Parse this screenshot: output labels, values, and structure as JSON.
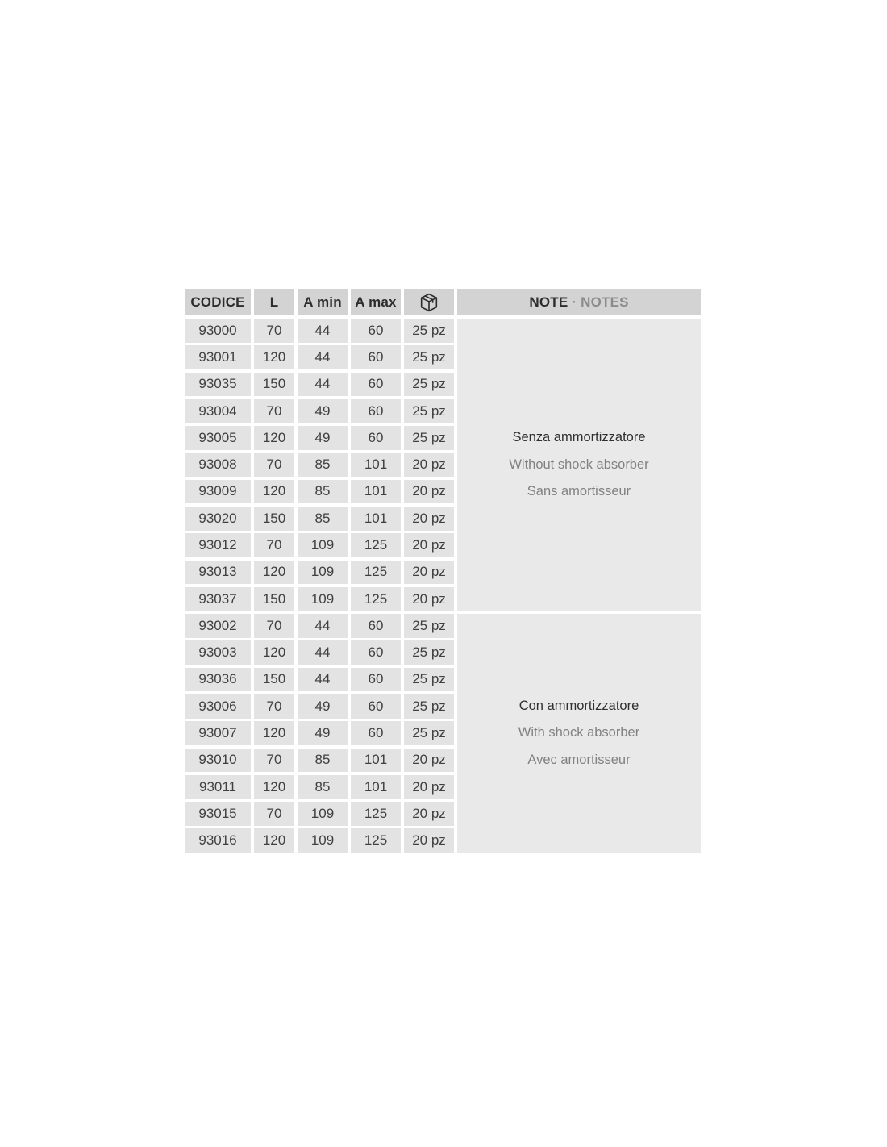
{
  "colors": {
    "header_bg": "#d3d3d3",
    "cell_bg": "#e3e3e3",
    "note_panel_bg": "#e9e9e9",
    "text_dark": "#2d2d2d",
    "text_number": "#404040",
    "text_gray": "#818181",
    "page_bg": "#ffffff"
  },
  "table": {
    "columns": [
      "CODICE",
      "L",
      "A min",
      "A max"
    ],
    "package_column_icon": "package-icon",
    "note_header": {
      "primary": "NOTE",
      "separator": "·",
      "secondary": "NOTES"
    },
    "groups": [
      {
        "note": {
          "it": "Senza ammortizzatore",
          "en": "Without shock absorber",
          "fr": "Sans amortisseur"
        },
        "rows": [
          [
            "93000",
            "70",
            "44",
            "60",
            "25 pz"
          ],
          [
            "93001",
            "120",
            "44",
            "60",
            "25 pz"
          ],
          [
            "93035",
            "150",
            "44",
            "60",
            "25 pz"
          ],
          [
            "93004",
            "70",
            "49",
            "60",
            "25 pz"
          ],
          [
            "93005",
            "120",
            "49",
            "60",
            "25 pz"
          ],
          [
            "93008",
            "70",
            "85",
            "101",
            "20 pz"
          ],
          [
            "93009",
            "120",
            "85",
            "101",
            "20 pz"
          ],
          [
            "93020",
            "150",
            "85",
            "101",
            "20 pz"
          ],
          [
            "93012",
            "70",
            "109",
            "125",
            "20 pz"
          ],
          [
            "93013",
            "120",
            "109",
            "125",
            "20 pz"
          ],
          [
            "93037",
            "150",
            "109",
            "125",
            "20 pz"
          ]
        ]
      },
      {
        "note": {
          "it": "Con ammortizzatore",
          "en": "With shock absorber",
          "fr": "Avec amortisseur"
        },
        "rows": [
          [
            "93002",
            "70",
            "44",
            "60",
            "25 pz"
          ],
          [
            "93003",
            "120",
            "44",
            "60",
            "25 pz"
          ],
          [
            "93036",
            "150",
            "44",
            "60",
            "25 pz"
          ],
          [
            "93006",
            "70",
            "49",
            "60",
            "25 pz"
          ],
          [
            "93007",
            "120",
            "49",
            "60",
            "25 pz"
          ],
          [
            "93010",
            "70",
            "85",
            "101",
            "20 pz"
          ],
          [
            "93011",
            "120",
            "85",
            "101",
            "20 pz"
          ],
          [
            "93015",
            "70",
            "109",
            "125",
            "20 pz"
          ],
          [
            "93016",
            "120",
            "109",
            "125",
            "20 pz"
          ]
        ]
      }
    ]
  }
}
